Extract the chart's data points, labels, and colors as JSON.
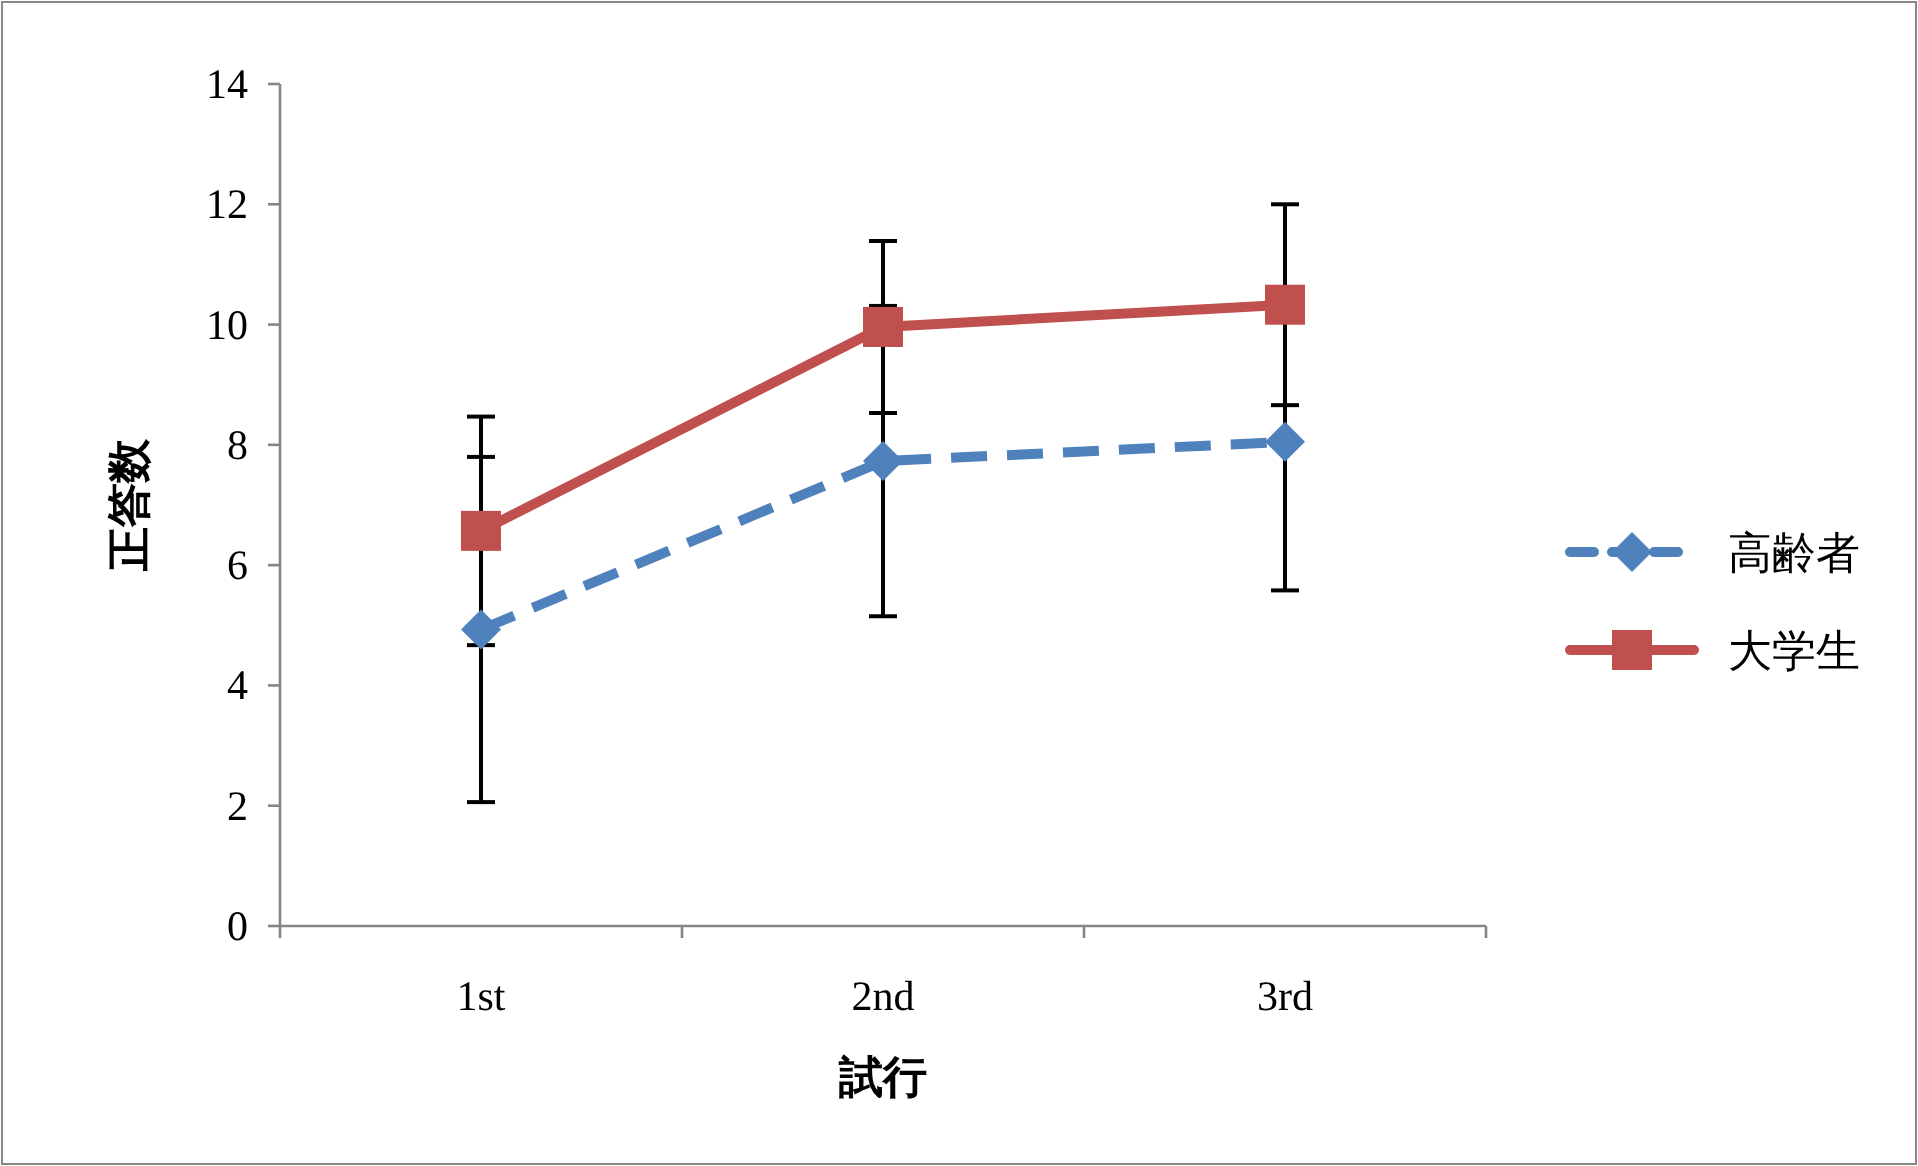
{
  "chart_data": {
    "type": "line",
    "xlabel": "試行",
    "ylabel": "正答数",
    "categories": [
      "1st",
      "2nd",
      "3rd"
    ],
    "series": [
      {
        "name": "高齢者",
        "color": "#4f81bd",
        "values": [
          4.93,
          7.73,
          8.05
        ],
        "errors": [
          2.87,
          2.58,
          2.47
        ],
        "marker": "diamond",
        "line_style": "dashed"
      },
      {
        "name": "大学生",
        "color": "#c0504d",
        "values": [
          6.57,
          9.96,
          10.33
        ],
        "errors": [
          1.9,
          1.43,
          1.67
        ],
        "marker": "square",
        "line_style": "solid"
      }
    ],
    "ylim": [
      0,
      14
    ],
    "yticks": [
      0,
      2,
      4,
      6,
      8,
      10,
      12,
      14
    ],
    "grid": false,
    "legend": "right"
  }
}
